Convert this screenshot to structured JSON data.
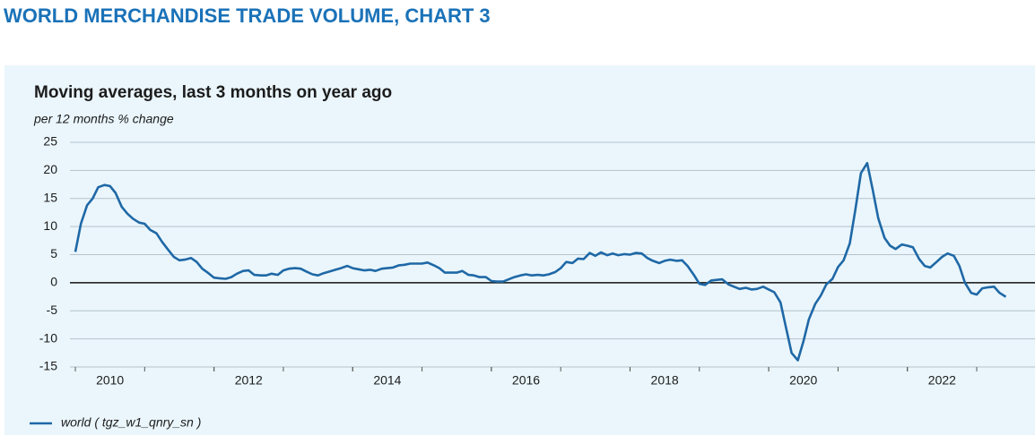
{
  "header": {
    "title": "WORLD MERCHANDISE TRADE VOLUME, CHART 3"
  },
  "chart_data": {
    "type": "line",
    "title": "Moving averages, last 3 months on year ago",
    "subtitle": "per 12 months % change",
    "x": [
      2010,
      2010.08,
      2010.17,
      2010.25,
      2010.33,
      2010.42,
      2010.5,
      2010.58,
      2010.67,
      2010.75,
      2010.83,
      2010.92,
      2011,
      2011.08,
      2011.17,
      2011.25,
      2011.33,
      2011.42,
      2011.5,
      2011.58,
      2011.67,
      2011.75,
      2011.83,
      2011.92,
      2012,
      2012.08,
      2012.17,
      2012.25,
      2012.33,
      2012.42,
      2012.5,
      2012.58,
      2012.67,
      2012.75,
      2012.83,
      2012.92,
      2013,
      2013.08,
      2013.17,
      2013.25,
      2013.33,
      2013.42,
      2013.5,
      2013.58,
      2013.67,
      2013.75,
      2013.83,
      2013.92,
      2014,
      2014.08,
      2014.17,
      2014.25,
      2014.33,
      2014.42,
      2014.5,
      2014.58,
      2014.67,
      2014.75,
      2014.83,
      2014.92,
      2015,
      2015.08,
      2015.17,
      2015.25,
      2015.33,
      2015.42,
      2015.5,
      2015.58,
      2015.67,
      2015.75,
      2015.83,
      2015.92,
      2016,
      2016.08,
      2016.17,
      2016.25,
      2016.33,
      2016.42,
      2016.5,
      2016.58,
      2016.67,
      2016.75,
      2016.83,
      2016.92,
      2017,
      2017.08,
      2017.17,
      2017.25,
      2017.33,
      2017.42,
      2017.5,
      2017.58,
      2017.67,
      2017.75,
      2017.83,
      2017.92,
      2018,
      2018.08,
      2018.17,
      2018.25,
      2018.33,
      2018.42,
      2018.5,
      2018.58,
      2018.67,
      2018.75,
      2018.83,
      2018.92,
      2019,
      2019.08,
      2019.17,
      2019.25,
      2019.33,
      2019.42,
      2019.5,
      2019.58,
      2019.67,
      2019.75,
      2019.83,
      2019.92,
      2020,
      2020.08,
      2020.17,
      2020.25,
      2020.33,
      2020.42,
      2020.5,
      2020.58,
      2020.67,
      2020.75,
      2020.83,
      2020.92,
      2021,
      2021.08,
      2021.17,
      2021.25,
      2021.33,
      2021.42,
      2021.5,
      2021.58,
      2021.67,
      2021.75,
      2021.83,
      2021.92,
      2022,
      2022.08,
      2022.17,
      2022.25,
      2022.33,
      2022.42,
      2022.5,
      2022.58,
      2022.67,
      2022.75,
      2022.83,
      2022.92,
      2023,
      2023.08,
      2023.17,
      2023.25,
      2023.33,
      2023.42
    ],
    "series": [
      {
        "name": "world ( tgz_w1_qnry_sn )",
        "color": "#1f68a6",
        "values": [
          5.5,
          10.5,
          13.8,
          15,
          17,
          17.4,
          17.2,
          16,
          13.5,
          12.3,
          11.4,
          10.7,
          10.5,
          9.4,
          8.8,
          7.3,
          6,
          4.6,
          4,
          4.1,
          4.4,
          3.7,
          2.5,
          1.7,
          0.9,
          0.8,
          0.7,
          1,
          1.6,
          2.1,
          2.2,
          1.4,
          1.3,
          1.3,
          1.6,
          1.4,
          2.2,
          2.5,
          2.6,
          2.5,
          2,
          1.5,
          1.3,
          1.7,
          2,
          2.3,
          2.6,
          3,
          2.6,
          2.4,
          2.2,
          2.3,
          2.1,
          2.5,
          2.6,
          2.7,
          3.1,
          3.2,
          3.4,
          3.4,
          3.4,
          3.6,
          3.1,
          2.6,
          1.8,
          1.8,
          1.8,
          2.1,
          1.4,
          1.3,
          1,
          1,
          0.3,
          0.2,
          0.2,
          0.6,
          1,
          1.3,
          1.5,
          1.3,
          1.4,
          1.3,
          1.5,
          1.9,
          2.6,
          3.7,
          3.5,
          4.3,
          4.2,
          5.3,
          4.8,
          5.4,
          4.9,
          5.2,
          4.9,
          5.1,
          5,
          5.3,
          5.2,
          4.4,
          3.9,
          3.5,
          3.9,
          4.1,
          3.9,
          4,
          3,
          1.4,
          -0.2,
          -0.4,
          0.4,
          0.5,
          0.6,
          -0.3,
          -0.7,
          -1.1,
          -0.9,
          -1.2,
          -1.1,
          -0.7,
          -1.2,
          -1.7,
          -3.5,
          -8,
          -12.5,
          -13.8,
          -10.5,
          -6.5,
          -3.8,
          -2.3,
          -0.3,
          0.7,
          2.8,
          4,
          7,
          13,
          19.5,
          21.3,
          16.5,
          11.5,
          8,
          6.6,
          6,
          6.8,
          6.6,
          6.3,
          4.2,
          3,
          2.7,
          3.7,
          4.6,
          5.2,
          4.8,
          3,
          0,
          -1.8,
          -2.1,
          -1,
          -0.8,
          -0.7,
          -1.8,
          -2.5
        ]
      }
    ],
    "xlim": [
      2010,
      2023.75
    ],
    "xticks": [
      {
        "value": 2010.5,
        "label": "2010"
      },
      {
        "value": 2012.5,
        "label": "2012"
      },
      {
        "value": 2014.5,
        "label": "2014"
      },
      {
        "value": 2016.5,
        "label": "2016"
      },
      {
        "value": 2018.5,
        "label": "2018"
      },
      {
        "value": 2020.5,
        "label": "2020"
      },
      {
        "value": 2022.5,
        "label": "2022"
      }
    ],
    "ylim": [
      -15,
      25
    ],
    "yticks": [
      25,
      20,
      15,
      10,
      5,
      0,
      -5,
      -10,
      -15
    ],
    "grid": true,
    "legend": "bottom-left"
  }
}
